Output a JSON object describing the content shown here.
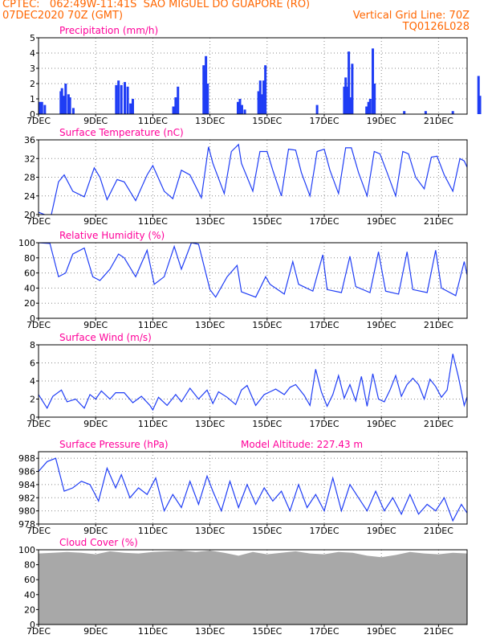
{
  "header": {
    "line1": "CPTEC:   062:49W-11:41S  SAO MIGUEL DO GUAPORE (RO)",
    "line2": "07DEC2020 70Z (GMT)",
    "vertical_grid": "Vertical Grid Line: 70Z",
    "run_code": "TQ0126L028"
  },
  "colors": {
    "header": "#ff6600",
    "title": "#ff0099",
    "series": "#1f3df5",
    "cloud": "#a8a8a8",
    "grid": "#888888"
  },
  "x_axis": {
    "day_start": 7,
    "day_end": 22,
    "ticks": [
      {
        "day": 7,
        "label": "7DEC"
      },
      {
        "day": 9,
        "label": "9DEC"
      },
      {
        "day": 11,
        "label": "11DEC"
      },
      {
        "day": 13,
        "label": "13DEC"
      },
      {
        "day": 15,
        "label": "15DEC"
      },
      {
        "day": 17,
        "label": "17DEC"
      },
      {
        "day": 19,
        "label": "19DEC"
      },
      {
        "day": 21,
        "label": "21DEC"
      }
    ]
  },
  "chart_data": [
    {
      "type": "bar",
      "title": "Precipitation (mm/h)",
      "ylim": [
        0,
        5
      ],
      "yticks": [
        0,
        1,
        2,
        3,
        4,
        5
      ],
      "x": [
        7.05,
        7.12,
        7.22,
        7.78,
        7.82,
        7.88,
        7.95,
        8.05,
        8.1,
        8.22,
        9.72,
        9.8,
        9.9,
        10.02,
        10.12,
        10.22,
        10.3,
        11.72,
        11.8,
        11.88,
        12.78,
        12.82,
        12.86,
        12.92,
        13.98,
        14.05,
        14.12,
        14.22,
        14.7,
        14.76,
        14.82,
        14.88,
        14.94,
        16.75,
        17.7,
        17.75,
        17.8,
        17.86,
        17.92,
        17.98,
        18.48,
        18.55,
        18.61,
        18.7,
        18.76,
        19.8,
        20.55,
        21.5,
        22.4,
        22.45
      ],
      "values": [
        0.8,
        0.8,
        0.6,
        1.5,
        1.7,
        1.2,
        2.0,
        1.3,
        1.1,
        0.4,
        1.9,
        2.2,
        1.9,
        2.1,
        1.8,
        0.7,
        1.0,
        0.5,
        1.1,
        1.8,
        3.2,
        2.8,
        3.8,
        2.0,
        0.8,
        1.0,
        0.6,
        0.3,
        1.5,
        2.2,
        1.3,
        2.2,
        3.2,
        0.6,
        1.8,
        2.4,
        1.8,
        4.1,
        1.1,
        3.3,
        0.5,
        0.8,
        1.0,
        4.3,
        2.0,
        0.2,
        0.2,
        0.2,
        2.5,
        1.2
      ]
    },
    {
      "type": "line",
      "title": "Surface Temperature (nC)",
      "ylim": [
        20,
        36
      ],
      "yticks": [
        20,
        24,
        28,
        32,
        36
      ],
      "x": [
        7.0,
        7.3,
        7.45,
        7.7,
        7.9,
        8.2,
        8.6,
        8.95,
        9.15,
        9.4,
        9.75,
        10.0,
        10.4,
        10.8,
        11.0,
        11.4,
        11.7,
        12.0,
        12.3,
        12.7,
        12.95,
        13.1,
        13.5,
        13.75,
        14.0,
        14.1,
        14.5,
        14.75,
        15.0,
        15.2,
        15.5,
        15.75,
        16.0,
        16.2,
        16.5,
        16.75,
        17.0,
        17.2,
        17.5,
        17.75,
        17.95,
        18.2,
        18.5,
        18.75,
        18.95,
        19.2,
        19.5,
        19.75,
        19.95,
        20.2,
        20.5,
        20.75,
        20.95,
        21.2,
        21.5,
        21.75,
        21.9,
        22.2,
        22.4,
        22.6,
        22.75,
        23.0,
        23.1,
        23.5
      ],
      "values": [
        20.5,
        19.8,
        20.0,
        27.0,
        28.5,
        25.0,
        23.8,
        30.0,
        28.0,
        23.2,
        27.5,
        27.0,
        23.0,
        28.5,
        30.5,
        25.0,
        23.4,
        29.5,
        28.5,
        23.6,
        34.5,
        31.0,
        24.5,
        33.5,
        35.0,
        31.0,
        25.0,
        33.5,
        33.5,
        29.5,
        24.0,
        34.0,
        33.8,
        29.0,
        24.0,
        33.5,
        34.0,
        29.5,
        24.5,
        34.3,
        34.3,
        29.0,
        24.0,
        33.5,
        33.0,
        29.0,
        24.0,
        33.5,
        33.0,
        28.0,
        25.5,
        32.3,
        32.5,
        28.5,
        25.0,
        32.0,
        31.5,
        27.5,
        24.5,
        33.5,
        33.0,
        28.5,
        25.5,
        32.0
      ]
    },
    {
      "type": "line",
      "title": "Relative Humidity (%)",
      "ylim": [
        0,
        100
      ],
      "yticks": [
        0,
        20,
        40,
        60,
        80,
        100
      ],
      "x": [
        7.0,
        7.4,
        7.7,
        7.95,
        8.2,
        8.6,
        8.9,
        9.15,
        9.5,
        9.8,
        10.0,
        10.4,
        10.8,
        11.05,
        11.4,
        11.75,
        12.0,
        12.35,
        12.6,
        13.0,
        13.2,
        13.6,
        13.95,
        14.1,
        14.6,
        14.95,
        15.1,
        15.6,
        15.9,
        16.1,
        16.6,
        16.95,
        17.1,
        17.6,
        17.9,
        18.1,
        18.6,
        18.9,
        19.15,
        19.6,
        19.9,
        20.1,
        20.6,
        20.9,
        21.1,
        21.6,
        21.9,
        22.1,
        22.5,
        22.8,
        23.1,
        23.5
      ],
      "values": [
        100,
        99,
        55,
        60,
        85,
        93,
        55,
        50,
        65,
        85,
        80,
        55,
        90,
        45,
        55,
        95,
        65,
        100,
        98,
        38,
        28,
        55,
        70,
        35,
        28,
        55,
        45,
        32,
        75,
        45,
        36,
        84,
        38,
        34,
        82,
        42,
        34,
        88,
        36,
        32,
        88,
        38,
        34,
        90,
        40,
        30,
        75,
        40,
        28,
        85,
        40,
        55
      ]
    },
    {
      "type": "line",
      "title": "Surface Wind (m/s)",
      "ylim": [
        0,
        8
      ],
      "yticks": [
        0,
        2,
        4,
        6,
        8
      ],
      "x": [
        7.0,
        7.3,
        7.5,
        7.8,
        8.0,
        8.3,
        8.6,
        8.8,
        9.0,
        9.2,
        9.5,
        9.7,
        10.0,
        10.3,
        10.6,
        10.9,
        11.0,
        11.2,
        11.5,
        11.8,
        12.0,
        12.3,
        12.6,
        12.9,
        13.1,
        13.3,
        13.6,
        13.9,
        14.1,
        14.3,
        14.6,
        14.9,
        15.1,
        15.3,
        15.6,
        15.8,
        16.0,
        16.3,
        16.5,
        16.7,
        16.9,
        17.1,
        17.3,
        17.5,
        17.7,
        17.9,
        18.1,
        18.3,
        18.5,
        18.7,
        18.9,
        19.1,
        19.3,
        19.5,
        19.7,
        19.9,
        20.1,
        20.3,
        20.5,
        20.7,
        20.9,
        21.1,
        21.3,
        21.5,
        21.7,
        21.9,
        22.1,
        22.3,
        22.5,
        22.7,
        22.9,
        23.1,
        23.5
      ],
      "values": [
        2.5,
        1.0,
        2.3,
        3.0,
        1.7,
        2.0,
        1.0,
        2.5,
        2.0,
        2.9,
        2.0,
        2.7,
        2.7,
        1.6,
        2.3,
        1.3,
        0.8,
        2.2,
        1.3,
        2.5,
        1.7,
        3.2,
        2.0,
        3.0,
        1.5,
        2.8,
        2.2,
        1.4,
        3.0,
        3.5,
        1.3,
        2.5,
        2.8,
        3.1,
        2.5,
        3.3,
        3.6,
        2.4,
        1.3,
        5.3,
        2.8,
        1.2,
        2.5,
        4.6,
        2.1,
        3.6,
        1.8,
        4.5,
        1.2,
        4.8,
        2.0,
        1.7,
        3.0,
        4.6,
        2.3,
        3.6,
        4.3,
        3.6,
        2.0,
        4.2,
        3.4,
        2.2,
        3.0,
        7.0,
        4.4,
        1.3,
        3.2,
        2.2,
        4.7,
        2.6,
        3.8,
        3.0,
        3.5
      ]
    },
    {
      "type": "line",
      "title": "Surface Pressure (hPa)",
      "annotation": "Model Altitude: 227.43 m",
      "ylim": [
        978,
        989
      ],
      "yticks": [
        978,
        980,
        982,
        984,
        986,
        988
      ],
      "x": [
        7.0,
        7.3,
        7.6,
        7.9,
        8.2,
        8.5,
        8.8,
        9.1,
        9.4,
        9.7,
        9.9,
        10.2,
        10.5,
        10.8,
        11.1,
        11.4,
        11.7,
        12.0,
        12.3,
        12.6,
        12.9,
        13.1,
        13.4,
        13.7,
        14.0,
        14.3,
        14.6,
        14.9,
        15.2,
        15.5,
        15.8,
        16.1,
        16.4,
        16.7,
        17.0,
        17.3,
        17.6,
        17.9,
        18.2,
        18.5,
        18.8,
        19.1,
        19.4,
        19.7,
        20.0,
        20.3,
        20.6,
        20.9,
        21.2,
        21.5,
        21.8,
        22.1,
        22.4,
        22.7,
        23.0,
        23.5
      ],
      "values": [
        986.0,
        987.5,
        988.0,
        983.0,
        983.5,
        984.5,
        984.0,
        981.5,
        986.5,
        983.5,
        985.5,
        982.0,
        983.5,
        982.5,
        985.0,
        980.0,
        982.5,
        980.5,
        984.5,
        981.0,
        985.3,
        983.0,
        980.0,
        984.5,
        980.5,
        984.0,
        981.0,
        983.5,
        981.5,
        983.0,
        980.0,
        984.0,
        980.5,
        982.5,
        980.0,
        985.0,
        980.0,
        984.0,
        982.0,
        980.0,
        983.0,
        980.0,
        982.0,
        979.5,
        982.5,
        979.5,
        981.0,
        980.0,
        982.0,
        978.5,
        981.0,
        979.0,
        981.0,
        979.5,
        982.0,
        980.0
      ]
    },
    {
      "type": "area",
      "title": "Cloud Cover (%)",
      "ylim": [
        0,
        100
      ],
      "yticks": [
        0,
        20,
        40,
        60,
        80,
        100
      ],
      "x": [
        7.0,
        7.5,
        8.0,
        8.5,
        9.0,
        9.5,
        10.0,
        10.5,
        11.0,
        11.5,
        12.0,
        12.5,
        13.0,
        13.5,
        14.0,
        14.5,
        15.0,
        15.5,
        16.0,
        16.5,
        17.0,
        17.5,
        18.0,
        18.5,
        19.0,
        19.5,
        20.0,
        20.5,
        21.0,
        21.5,
        22.0,
        22.5,
        23.0,
        23.5
      ],
      "values": [
        95,
        96,
        97,
        96,
        94,
        98,
        96,
        95,
        97,
        98,
        99,
        97,
        99,
        96,
        92,
        97,
        94,
        96,
        98,
        95,
        94,
        97,
        96,
        92,
        90,
        93,
        97,
        95,
        94,
        96,
        95,
        91,
        93,
        96
      ]
    }
  ]
}
